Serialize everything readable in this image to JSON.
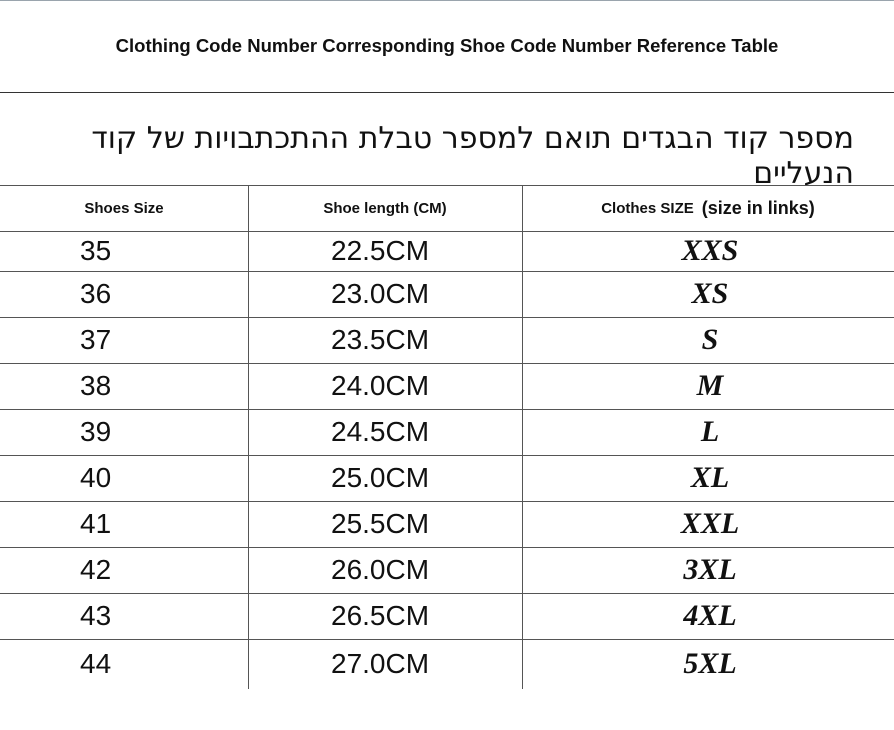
{
  "title": "Clothing Code Number Corresponding Shoe Code Number Reference Table",
  "subtitle": "מספר קוד הבגדים תואם למספר טבלת ההתכתבויות של קוד הנעליים",
  "table": {
    "headers": [
      "Shoes Size",
      "Shoe length (CM)",
      "Clothes SIZE",
      "(size in links)"
    ],
    "rows": [
      [
        "35",
        "22.5CM",
        "XXS"
      ],
      [
        "36",
        "23.0CM",
        "XS"
      ],
      [
        "37",
        "23.5CM",
        "S"
      ],
      [
        "38",
        "24.0CM",
        "M"
      ],
      [
        "39",
        "24.5CM",
        "L"
      ],
      [
        "40",
        "25.0CM",
        "XL"
      ],
      [
        "41",
        "25.5CM",
        "XXL"
      ],
      [
        "42",
        "26.0CM",
        "3XL"
      ],
      [
        "43",
        "26.5CM",
        "4XL"
      ],
      [
        "44",
        "27.0CM",
        "5XL"
      ]
    ]
  }
}
